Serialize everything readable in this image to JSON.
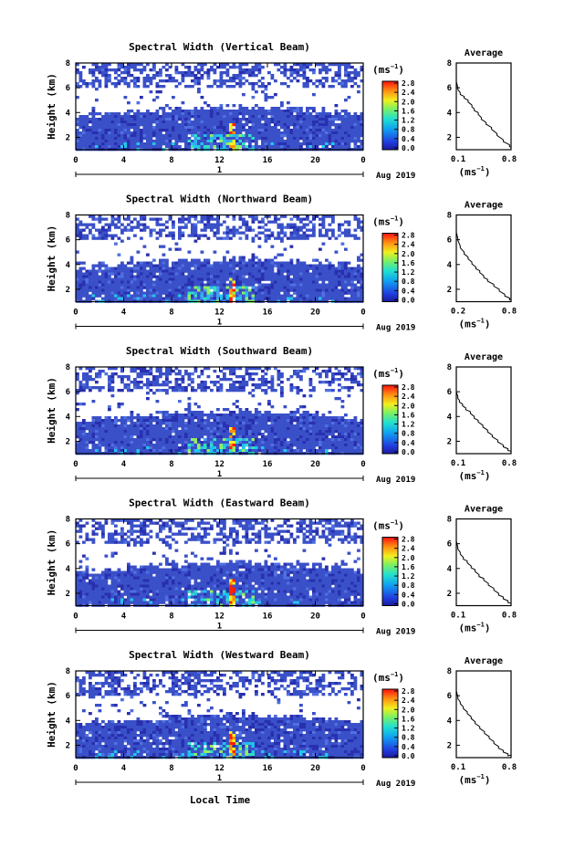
{
  "figure": {
    "xlabel_bottom": "Local Time",
    "colorbar_unit": "(ms",
    "colorbar_unit_exp": "−1",
    "avg_title": "Average",
    "avg_xlabel": "(ms",
    "avg_xlabel_exp": "−1",
    "date_label": "Aug 2019",
    "day_label": "1",
    "colors": {
      "background_heat": "#3a50c8",
      "high": "#ff2000"
    }
  },
  "chart_data": [
    {
      "type": "heatmap",
      "title": "Spectral Width (Vertical Beam)",
      "ylabel": "Height (km)",
      "x_ticks": [
        "0",
        "4",
        "8",
        "12",
        "16",
        "20",
        "0"
      ],
      "y_ticks": [
        "2",
        "4",
        "6",
        "8"
      ],
      "xlim": [
        0,
        24
      ],
      "ylim": [
        1,
        8
      ],
      "colorbar_ticks": [
        "0.0",
        "0.4",
        "0.8",
        "1.2",
        "1.6",
        "2.0",
        "2.4",
        "2.8"
      ],
      "average": {
        "x_ticks": [
          "0.1",
          "0.8"
        ],
        "y_ticks": [
          "2",
          "4",
          "6",
          "8"
        ],
        "xlim": [
          0.1,
          0.8
        ],
        "ylim": [
          1,
          8
        ],
        "x": [
          0.1,
          0.12,
          0.15,
          0.2,
          0.25,
          0.3,
          0.33,
          0.38,
          0.42,
          0.48,
          0.55,
          0.62,
          0.7,
          0.78,
          0.8
        ],
        "y": [
          6.5,
          6.0,
          5.6,
          5.3,
          5.0,
          4.6,
          4.3,
          4.0,
          3.6,
          3.2,
          2.8,
          2.3,
          1.8,
          1.4,
          1.2
        ]
      }
    },
    {
      "type": "heatmap",
      "title": "Spectral Width (Northward Beam)",
      "ylabel": "Height (km)",
      "x_ticks": [
        "0",
        "4",
        "8",
        "12",
        "16",
        "20",
        "0"
      ],
      "y_ticks": [
        "2",
        "4",
        "6",
        "8"
      ],
      "xlim": [
        0,
        24
      ],
      "ylim": [
        1,
        8
      ],
      "colorbar_ticks": [
        "0.0",
        "0.4",
        "0.8",
        "1.2",
        "1.6",
        "2.0",
        "2.4",
        "2.8"
      ],
      "average": {
        "x_ticks": [
          "0.2",
          "0.8"
        ],
        "y_ticks": [
          "2",
          "4",
          "6",
          "8"
        ],
        "xlim": [
          0.1,
          0.8
        ],
        "ylim": [
          1,
          8
        ],
        "x": [
          0.1,
          0.12,
          0.15,
          0.2,
          0.25,
          0.3,
          0.35,
          0.4,
          0.45,
          0.5,
          0.58,
          0.65,
          0.72,
          0.78,
          0.8
        ],
        "y": [
          6.6,
          6.1,
          5.5,
          5.0,
          4.6,
          4.2,
          3.8,
          3.5,
          3.1,
          2.8,
          2.4,
          2.0,
          1.6,
          1.3,
          1.2
        ]
      }
    },
    {
      "type": "heatmap",
      "title": "Spectral Width (Southward Beam)",
      "ylabel": "Height (km)",
      "x_ticks": [
        "0",
        "4",
        "8",
        "12",
        "16",
        "20",
        "0"
      ],
      "y_ticks": [
        "2",
        "4",
        "6",
        "8"
      ],
      "xlim": [
        0,
        24
      ],
      "ylim": [
        1,
        8
      ],
      "colorbar_ticks": [
        "0.0",
        "0.4",
        "0.8",
        "1.2",
        "1.6",
        "2.0",
        "2.4",
        "2.8"
      ],
      "average": {
        "x_ticks": [
          "0.1",
          "0.8"
        ],
        "y_ticks": [
          "2",
          "4",
          "6",
          "8"
        ],
        "xlim": [
          0.1,
          0.8
        ],
        "ylim": [
          1,
          8
        ],
        "x": [
          0.1,
          0.12,
          0.14,
          0.18,
          0.22,
          0.28,
          0.33,
          0.38,
          0.44,
          0.5,
          0.56,
          0.63,
          0.7,
          0.76,
          0.8
        ],
        "y": [
          6.0,
          5.6,
          5.3,
          5.0,
          4.7,
          4.4,
          4.0,
          3.7,
          3.3,
          2.9,
          2.5,
          2.1,
          1.7,
          1.4,
          1.2
        ]
      }
    },
    {
      "type": "heatmap",
      "title": "Spectral Width (Eastward Beam)",
      "ylabel": "Height (km)",
      "x_ticks": [
        "0",
        "4",
        "8",
        "12",
        "16",
        "20",
        "0"
      ],
      "y_ticks": [
        "2",
        "4",
        "6",
        "8"
      ],
      "xlim": [
        0,
        24
      ],
      "ylim": [
        1,
        8
      ],
      "colorbar_ticks": [
        "0.0",
        "0.4",
        "0.8",
        "1.2",
        "1.6",
        "2.0",
        "2.4",
        "2.8"
      ],
      "average": {
        "x_ticks": [
          "0.1",
          "0.8"
        ],
        "y_ticks": [
          "2",
          "4",
          "6",
          "8"
        ],
        "xlim": [
          0.1,
          0.8
        ],
        "ylim": [
          1,
          8
        ],
        "x": [
          0.1,
          0.12,
          0.15,
          0.19,
          0.24,
          0.29,
          0.34,
          0.39,
          0.45,
          0.51,
          0.58,
          0.64,
          0.7,
          0.76,
          0.8
        ],
        "y": [
          6.2,
          5.7,
          5.3,
          4.9,
          4.6,
          4.2,
          3.9,
          3.5,
          3.2,
          2.8,
          2.4,
          2.0,
          1.7,
          1.4,
          1.2
        ]
      }
    },
    {
      "type": "heatmap",
      "title": "Spectral Width (Westward Beam)",
      "ylabel": "Height (km)",
      "x_ticks": [
        "0",
        "4",
        "8",
        "12",
        "16",
        "20",
        "0"
      ],
      "y_ticks": [
        "2",
        "4",
        "6",
        "8"
      ],
      "xlim": [
        0,
        24
      ],
      "ylim": [
        1,
        8
      ],
      "colorbar_ticks": [
        "0.0",
        "0.4",
        "0.8",
        "1.2",
        "1.6",
        "2.0",
        "2.4",
        "2.8"
      ],
      "average": {
        "x_ticks": [
          "0.1",
          "0.8"
        ],
        "y_ticks": [
          "2",
          "4",
          "6",
          "8"
        ],
        "xlim": [
          0.1,
          0.8
        ],
        "ylim": [
          1,
          8
        ],
        "x": [
          0.1,
          0.12,
          0.15,
          0.19,
          0.24,
          0.29,
          0.34,
          0.4,
          0.46,
          0.52,
          0.58,
          0.64,
          0.7,
          0.76,
          0.8
        ],
        "y": [
          6.4,
          5.9,
          5.5,
          5.1,
          4.7,
          4.3,
          3.9,
          3.5,
          3.1,
          2.7,
          2.3,
          1.9,
          1.6,
          1.3,
          1.2
        ]
      }
    }
  ]
}
